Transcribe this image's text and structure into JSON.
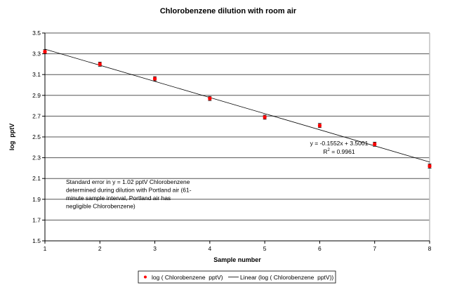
{
  "chart_data": {
    "type": "scatter",
    "title": "Chlorobenzene dilution with room air",
    "xlabel": "Sample number",
    "ylabel": "log  pptV",
    "xlim": [
      1,
      8
    ],
    "ylim": [
      1.5,
      3.5
    ],
    "xticks": [
      "1",
      "2",
      "3",
      "4",
      "5",
      "6",
      "7",
      "8"
    ],
    "yticks": [
      "1.5",
      "1.7",
      "1.9",
      "2.1",
      "2.3",
      "2.5",
      "2.7",
      "2.9",
      "3.1",
      "3.3",
      "3.5"
    ],
    "grid": true,
    "series": [
      {
        "name": "log ( Chlorobenzene  pptV)",
        "x": [
          1,
          2,
          3,
          4,
          5,
          6,
          7,
          8
        ],
        "y": [
          3.32,
          3.2,
          3.06,
          2.87,
          2.69,
          2.61,
          2.43,
          2.22
        ],
        "error": 0.02,
        "color": "#ff0000"
      }
    ],
    "trendline": {
      "name": "Linear (log ( Chlorobenzene  pptV))",
      "slope": -0.1552,
      "intercept": 3.5001,
      "equation": "y = -0.1552x + 3.5001",
      "r2_label": "R",
      "r2_sup": "2",
      "r2_value": " = 0.9961",
      "color": "#000000"
    },
    "annotation": [
      "Standard error in y = 1.02 pptV Chlorobenzene",
      "determined during dilution with Portland air (61-",
      "minute sample interval, Portland air has",
      "negligible Chlorobenzene)"
    ],
    "legend_position": "bottom"
  }
}
